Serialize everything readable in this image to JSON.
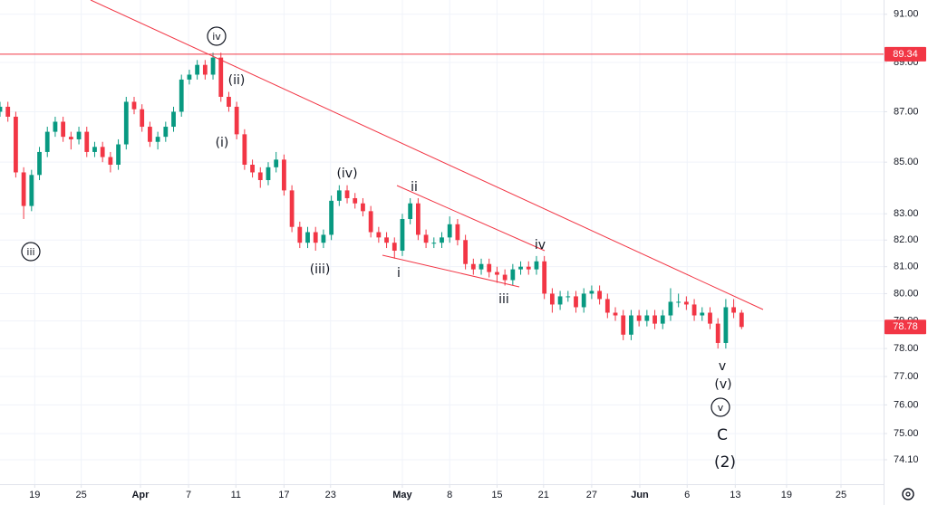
{
  "chart_data": {
    "type": "candlestick",
    "log_scale": true,
    "grid": true,
    "up_color": "#089981",
    "down_color": "#f23645",
    "line_color": "#f23645",
    "xlim": [
      0,
      112
    ],
    "xticks": [
      {
        "value": 4.4,
        "label": "19"
      },
      {
        "value": 10.3,
        "label": "25"
      },
      {
        "value": 17.8,
        "label": "Apr"
      },
      {
        "value": 23.9,
        "label": "7"
      },
      {
        "value": 29.9,
        "label": "11"
      },
      {
        "value": 36.0,
        "label": "17"
      },
      {
        "value": 41.9,
        "label": "23"
      },
      {
        "value": 51.0,
        "label": "May"
      },
      {
        "value": 57.0,
        "label": "8"
      },
      {
        "value": 63.0,
        "label": "15"
      },
      {
        "value": 68.9,
        "label": "21"
      },
      {
        "value": 75.0,
        "label": "27"
      },
      {
        "value": 81.1,
        "label": "Jun"
      },
      {
        "value": 87.1,
        "label": "6"
      },
      {
        "value": 93.2,
        "label": "13"
      },
      {
        "value": 99.7,
        "label": "19"
      },
      {
        "value": 106.6,
        "label": "25"
      }
    ],
    "ylim": [
      73.27,
      91.6
    ],
    "yticks": [
      {
        "value": 74.1,
        "label": "74.10"
      },
      {
        "value": 75,
        "label": "75.00"
      },
      {
        "value": 76,
        "label": "76.00"
      },
      {
        "value": 77,
        "label": "77.00"
      },
      {
        "value": 78,
        "label": "78.00"
      },
      {
        "value": 79,
        "label": "79.00"
      },
      {
        "value": 80,
        "label": "80.00"
      },
      {
        "value": 81,
        "label": "81.00"
      },
      {
        "value": 82,
        "label": "82.00"
      },
      {
        "value": 83,
        "label": "83.00"
      },
      {
        "value": 85,
        "label": "85.00"
      },
      {
        "value": 87,
        "label": "87.00"
      },
      {
        "value": 89,
        "label": "89.00"
      },
      {
        "value": 91,
        "label": "91.00"
      }
    ],
    "price_line": 89.34,
    "x": [
      0,
      1,
      2,
      3,
      4,
      5,
      6,
      7,
      8,
      9,
      10,
      11,
      12,
      13,
      14,
      15,
      16,
      17,
      18,
      19,
      20,
      21,
      22,
      23,
      24,
      25,
      26,
      27,
      28,
      29,
      30,
      31,
      32,
      33,
      34,
      35,
      36,
      37,
      38,
      39,
      40,
      41,
      42,
      43,
      44,
      45,
      46,
      47,
      48,
      49,
      50,
      51,
      52,
      53,
      54,
      55,
      56,
      57,
      58,
      59,
      60,
      61,
      62,
      63,
      64,
      65,
      66,
      67,
      68,
      69,
      70,
      71,
      72,
      73,
      74,
      75,
      76,
      77,
      78,
      79,
      80,
      81,
      82,
      83,
      84,
      85,
      86,
      87,
      88,
      89,
      90,
      91,
      92,
      93,
      94
    ],
    "open": [
      87.0,
      87.2,
      86.8,
      84.6,
      83.3,
      84.5,
      85.4,
      86.2,
      86.6,
      86.0,
      85.9,
      86.2,
      85.4,
      85.6,
      85.2,
      84.9,
      85.7,
      87.4,
      87.1,
      86.4,
      85.8,
      86.0,
      86.4,
      87.0,
      88.3,
      88.5,
      88.9,
      88.5,
      89.2,
      87.6,
      87.2,
      86.1,
      84.9,
      84.6,
      84.3,
      84.8,
      85.1,
      83.9,
      82.5,
      81.9,
      82.3,
      81.9,
      82.2,
      83.5,
      83.9,
      83.6,
      83.4,
      83.1,
      82.3,
      82.1,
      81.9,
      81.6,
      82.8,
      83.4,
      82.2,
      81.9,
      81.9,
      82.1,
      82.6,
      82.0,
      81.1,
      80.9,
      81.1,
      80.8,
      80.7,
      80.5,
      80.9,
      81.0,
      80.9,
      81.2,
      80.0,
      79.6,
      79.9,
      79.9,
      79.5,
      80.0,
      80.1,
      79.8,
      79.3,
      79.2,
      78.5,
      79.2,
      79.0,
      79.2,
      78.9,
      79.2,
      79.7,
      79.7,
      79.6,
      79.2,
      79.3,
      78.9,
      78.2,
      79.5,
      79.3
    ],
    "high": [
      87.4,
      87.4,
      87.0,
      84.8,
      84.7,
      85.6,
      86.4,
      86.8,
      86.8,
      86.2,
      86.4,
      86.4,
      85.8,
      85.8,
      85.4,
      85.9,
      87.6,
      87.6,
      87.3,
      86.6,
      86.2,
      86.6,
      87.2,
      88.5,
      88.7,
      89.1,
      89.1,
      89.4,
      89.4,
      87.8,
      87.4,
      86.3,
      85.1,
      84.8,
      85.0,
      85.4,
      85.3,
      84.1,
      82.7,
      82.5,
      82.5,
      82.4,
      83.7,
      84.1,
      84.1,
      83.8,
      83.6,
      83.3,
      82.5,
      82.3,
      82.1,
      83.0,
      83.6,
      83.6,
      82.4,
      82.1,
      82.3,
      82.9,
      82.8,
      82.2,
      81.3,
      81.3,
      81.3,
      81.0,
      80.9,
      81.1,
      81.2,
      81.2,
      81.4,
      81.4,
      80.2,
      80.1,
      80.1,
      80.1,
      80.2,
      80.3,
      80.3,
      80.0,
      79.5,
      79.4,
      79.4,
      79.4,
      79.4,
      79.4,
      79.4,
      80.2,
      80.0,
      79.9,
      79.8,
      79.5,
      79.5,
      79.1,
      79.8,
      79.8,
      79.4
    ],
    "low": [
      86.8,
      86.6,
      84.4,
      82.8,
      83.1,
      84.3,
      85.2,
      86.0,
      85.8,
      85.5,
      85.7,
      85.2,
      85.2,
      85.0,
      84.6,
      84.7,
      85.5,
      86.9,
      86.2,
      85.6,
      85.5,
      85.8,
      86.2,
      86.8,
      88.1,
      88.3,
      88.3,
      88.3,
      87.4,
      87.0,
      85.9,
      84.7,
      84.4,
      84.0,
      84.1,
      84.6,
      83.7,
      82.3,
      81.7,
      81.7,
      81.6,
      81.7,
      82.0,
      83.3,
      83.4,
      83.2,
      82.9,
      82.1,
      81.9,
      81.7,
      81.3,
      81.4,
      82.6,
      82.0,
      81.7,
      81.7,
      81.7,
      81.9,
      81.8,
      80.9,
      80.7,
      80.7,
      80.6,
      80.4,
      80.3,
      80.3,
      80.7,
      80.7,
      80.7,
      79.8,
      79.3,
      79.4,
      79.7,
      79.3,
      79.3,
      79.8,
      79.6,
      79.1,
      79.0,
      78.3,
      78.3,
      78.8,
      78.8,
      78.7,
      78.7,
      79.0,
      79.5,
      79.4,
      79.0,
      79.0,
      78.7,
      78.0,
      78.0,
      79.1,
      78.7
    ],
    "close": [
      87.2,
      86.8,
      84.6,
      83.3,
      84.5,
      85.4,
      86.2,
      86.6,
      86.0,
      85.9,
      86.2,
      85.4,
      85.6,
      85.2,
      84.9,
      85.7,
      87.4,
      87.1,
      86.4,
      85.8,
      86.0,
      86.4,
      87.0,
      88.3,
      88.5,
      88.9,
      88.5,
      89.2,
      87.6,
      87.2,
      86.1,
      84.9,
      84.6,
      84.3,
      84.8,
      85.1,
      83.9,
      82.5,
      81.9,
      82.3,
      81.9,
      82.2,
      83.5,
      83.9,
      83.6,
      83.4,
      83.1,
      82.3,
      82.1,
      81.9,
      81.6,
      82.8,
      83.4,
      82.2,
      81.9,
      81.9,
      82.1,
      82.6,
      82.0,
      81.1,
      80.9,
      81.1,
      80.8,
      80.7,
      80.5,
      80.9,
      81.0,
      80.9,
      81.2,
      80.0,
      79.6,
      79.9,
      79.9,
      79.5,
      80.0,
      80.1,
      79.8,
      79.3,
      79.2,
      78.5,
      79.2,
      79.0,
      79.2,
      78.9,
      79.2,
      79.7,
      79.7,
      79.6,
      79.2,
      79.3,
      78.9,
      78.2,
      79.5,
      79.3,
      78.78
    ],
    "wave_labels": [
      "iii",
      "iv",
      "(ii)",
      "(i)",
      "(iv)",
      "(iii)",
      "ii",
      "i",
      "iii",
      "iv",
      "v",
      "(v)",
      "v",
      "C",
      "(2)"
    ]
  }
}
